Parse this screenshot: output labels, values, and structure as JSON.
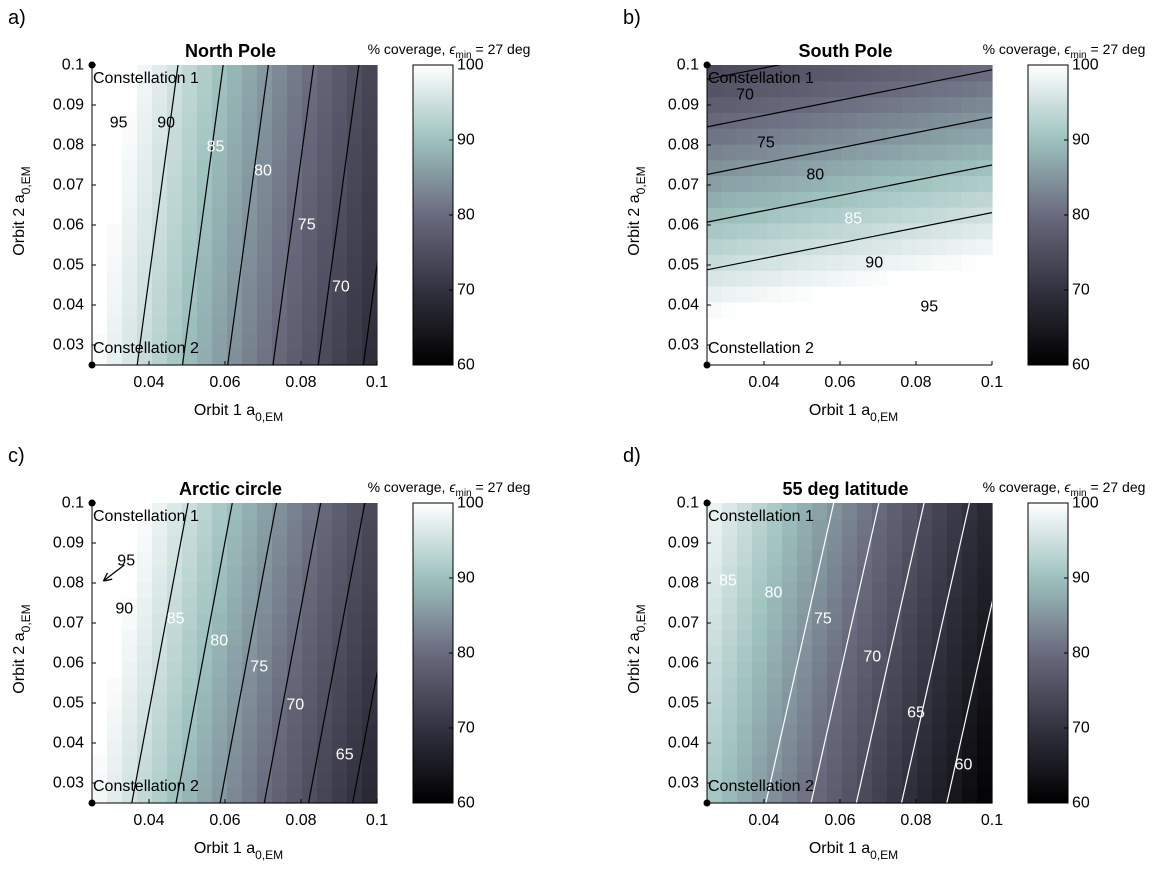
{
  "chart_data": [
    {
      "type": "heatmap",
      "panel_letter": "a)",
      "title": "North Pole",
      "xlabel": "Orbit 1 a",
      "xlabel_sub": "0,EM",
      "ylabel": "Orbit 2 a",
      "ylabel_sub": "0,EM",
      "xlim": [
        0.025,
        0.1
      ],
      "ylim": [
        0.025,
        0.1
      ],
      "xticks": [
        "0.04",
        "0.06",
        "0.08",
        "0.1"
      ],
      "yticks": [
        "0.03",
        "0.04",
        "0.05",
        "0.06",
        "0.07",
        "0.08",
        "0.09",
        "0.1"
      ],
      "colorbar": {
        "title_prefix": "% coverage, ",
        "epsilon": "ϵ",
        "epsilon_sub": "min",
        "title_suffix": " = 27 deg",
        "range": [
          60,
          100
        ],
        "ticks": [
          "60",
          "70",
          "80",
          "90",
          "100"
        ]
      },
      "surface": {
        "c0": 100,
        "gx": -420,
        "gy": 60
      },
      "markers": [
        {
          "label": "Constellation 1",
          "x": 0.025,
          "y": 0.1
        },
        {
          "label": "Constellation 2",
          "x": 0.025,
          "y": 0.025
        }
      ],
      "contours": [
        {
          "level": 95,
          "color": "#000000",
          "label": "95",
          "label_color": "#000000",
          "label_at": [
            0.032,
            0.0855
          ]
        },
        {
          "level": 90,
          "color": "#000000",
          "label": "90",
          "label_color": "#000000",
          "label_at": [
            0.0445,
            0.0855
          ]
        },
        {
          "level": 85,
          "color": "#000000",
          "label": "85",
          "label_color": "#ffffff",
          "label_at": [
            0.0575,
            0.0795
          ]
        },
        {
          "level": 80,
          "color": "#000000",
          "label": "80",
          "label_color": "#ffffff",
          "label_at": [
            0.07,
            0.0735
          ]
        },
        {
          "level": 75,
          "color": "#000000",
          "label": "75",
          "label_color": "#ffffff",
          "label_at": [
            0.0815,
            0.06
          ]
        },
        {
          "level": 70,
          "color": "#000000",
          "label": "70",
          "label_color": "#ffffff",
          "label_at": [
            0.0905,
            0.0445
          ]
        }
      ]
    },
    {
      "type": "heatmap",
      "panel_letter": "b)",
      "title": "South Pole",
      "xlabel": "Orbit 1 a",
      "xlabel_sub": "0,EM",
      "ylabel": "Orbit 2 a",
      "ylabel_sub": "0,EM",
      "xlim": [
        0.025,
        0.1
      ],
      "ylim": [
        0.025,
        0.1
      ],
      "xticks": [
        "0.04",
        "0.06",
        "0.08",
        "0.1"
      ],
      "yticks": [
        "0.03",
        "0.04",
        "0.05",
        "0.06",
        "0.07",
        "0.08",
        "0.09",
        "0.1"
      ],
      "colorbar": {
        "title_prefix": "% coverage, ",
        "epsilon": "ϵ",
        "epsilon_sub": "min",
        "title_suffix": " = 27 deg",
        "range": [
          60,
          100
        ],
        "ticks": [
          "60",
          "70",
          "80",
          "90",
          "100"
        ]
      },
      "surface": {
        "c0": 105,
        "gx": 80,
        "gy": -420
      },
      "markers": [
        {
          "label": "Constellation 1",
          "x": 0.025,
          "y": 0.1
        },
        {
          "label": "Constellation 2",
          "x": 0.025,
          "y": 0.025
        }
      ],
      "contours": [
        {
          "level": 70,
          "color": "#000000",
          "label": "70",
          "label_color": "#000000",
          "label_at": [
            0.035,
            0.0925
          ]
        },
        {
          "level": 75,
          "color": "#000000",
          "label": "75",
          "label_color": "#000000",
          "label_at": [
            0.0405,
            0.0805
          ]
        },
        {
          "level": 80,
          "color": "#000000",
          "label": "80",
          "label_color": "#000000",
          "label_at": [
            0.0535,
            0.0725
          ]
        },
        {
          "level": 85,
          "color": "#000000",
          "label": "85",
          "label_color": "#ffffff",
          "label_at": [
            0.0635,
            0.0615
          ]
        },
        {
          "level": 90,
          "color": "#000000",
          "label": "90",
          "label_color": "#000000",
          "label_at": [
            0.069,
            0.0505
          ]
        },
        {
          "level": 95,
          "color": "#000000",
          "label": "95",
          "label_color": "#000000",
          "label_at": [
            0.0835,
            0.0395
          ]
        }
      ]
    },
    {
      "type": "heatmap",
      "panel_letter": "c)",
      "title": "Arctic circle",
      "xlabel": "Orbit 1 a",
      "xlabel_sub": "0,EM",
      "ylabel": "Orbit 2 a",
      "ylabel_sub": "0,EM",
      "xlim": [
        0.025,
        0.1
      ],
      "ylim": [
        0.025,
        0.1
      ],
      "xticks": [
        "0.04",
        "0.06",
        "0.08",
        "0.1"
      ],
      "yticks": [
        "0.03",
        "0.04",
        "0.05",
        "0.06",
        "0.07",
        "0.08",
        "0.09",
        "0.1"
      ],
      "colorbar": {
        "title_prefix": "% coverage, ",
        "epsilon": "ϵ",
        "epsilon_sub": "min",
        "title_suffix": " = 27 deg",
        "range": [
          60,
          100
        ],
        "ticks": [
          "60",
          "70",
          "80",
          "90",
          "100"
        ]
      },
      "surface": {
        "c0": 99.5,
        "gx": -430,
        "gy": 85
      },
      "markers": [
        {
          "label": "Constellation 1",
          "x": 0.025,
          "y": 0.1
        },
        {
          "label": "Constellation 2",
          "x": 0.025,
          "y": 0.025
        }
      ],
      "arrow": {
        "from": [
          0.0335,
          0.0845
        ],
        "to": [
          0.028,
          0.0805
        ]
      },
      "contours": [
        {
          "level": 95,
          "color": "#000000",
          "label": "95",
          "label_color": "#000000",
          "label_at": [
            0.034,
            0.0855
          ]
        },
        {
          "level": 90,
          "color": "#000000",
          "label": "90",
          "label_color": "#000000",
          "label_at": [
            0.0335,
            0.0735
          ]
        },
        {
          "level": 85,
          "color": "#000000",
          "label": "85",
          "label_color": "#ffffff",
          "label_at": [
            0.047,
            0.071
          ]
        },
        {
          "level": 80,
          "color": "#000000",
          "label": "80",
          "label_color": "#ffffff",
          "label_at": [
            0.0585,
            0.0655
          ]
        },
        {
          "level": 75,
          "color": "#000000",
          "label": "75",
          "label_color": "#ffffff",
          "label_at": [
            0.069,
            0.059
          ]
        },
        {
          "level": 70,
          "color": "#000000",
          "label": "70",
          "label_color": "#ffffff",
          "label_at": [
            0.0785,
            0.0495
          ]
        },
        {
          "level": 65,
          "color": "#000000",
          "label": "65",
          "label_color": "#ffffff",
          "label_at": [
            0.0915,
            0.037
          ]
        }
      ]
    },
    {
      "type": "heatmap",
      "panel_letter": "d)",
      "title": "55 deg latitude",
      "xlabel": "Orbit 1 a",
      "xlabel_sub": "0,EM",
      "ylabel": "Orbit 2 a",
      "ylabel_sub": "0,EM",
      "xlim": [
        0.025,
        0.1
      ],
      "ylim": [
        0.025,
        0.1
      ],
      "xticks": [
        "0.04",
        "0.06",
        "0.08",
        "0.1"
      ],
      "yticks": [
        "0.03",
        "0.04",
        "0.05",
        "0.06",
        "0.07",
        "0.08",
        "0.09",
        "0.1"
      ],
      "colorbar": {
        "title_prefix": "% coverage, ",
        "epsilon": "ϵ",
        "epsilon_sub": "min",
        "title_suffix": " = 27 deg",
        "range": [
          60,
          100
        ],
        "ticks": [
          "60",
          "70",
          "80",
          "90",
          "100"
        ]
      },
      "surface": {
        "c0": 91.5,
        "gx": -420,
        "gy": 100
      },
      "markers": [
        {
          "label": "Constellation 1",
          "x": 0.025,
          "y": 0.1
        },
        {
          "label": "Constellation 2",
          "x": 0.025,
          "y": 0.025
        }
      ],
      "contours": [
        {
          "level": 85,
          "color": "#ffffff",
          "label": "85",
          "label_color": "#ffffff",
          "label_at": [
            0.0305,
            0.0805
          ]
        },
        {
          "level": 80,
          "color": "#ffffff",
          "label": "80",
          "label_color": "#ffffff",
          "label_at": [
            0.0425,
            0.0775
          ]
        },
        {
          "level": 75,
          "color": "#ffffff",
          "label": "75",
          "label_color": "#ffffff",
          "label_at": [
            0.0555,
            0.071
          ]
        },
        {
          "level": 70,
          "color": "#ffffff",
          "label": "70",
          "label_color": "#ffffff",
          "label_at": [
            0.0685,
            0.0615
          ]
        },
        {
          "level": 65,
          "color": "#ffffff",
          "label": "65",
          "label_color": "#ffffff",
          "label_at": [
            0.08,
            0.0475
          ]
        },
        {
          "level": 60,
          "color": "#ffffff",
          "label": "60",
          "label_color": "#ffffff",
          "label_at": [
            0.0925,
            0.0345
          ]
        }
      ]
    }
  ]
}
